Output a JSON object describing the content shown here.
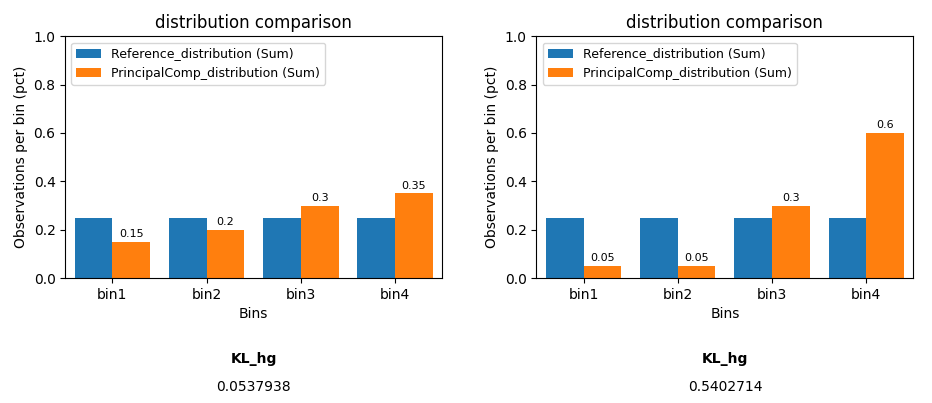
{
  "chart_data": [
    {
      "type": "bar",
      "title": "distribution comparison",
      "x_label": "Bins",
      "y_label": "Observations per bin (pct)",
      "categories": [
        "bin1",
        "bin2",
        "bin3",
        "bin4"
      ],
      "series": [
        {
          "name": "Reference_distribution (Sum)",
          "values": [
            0.25,
            0.25,
            0.25,
            0.25
          ]
        },
        {
          "name": "PrincipalComp_distribution (Sum)",
          "values": [
            0.15,
            0.2,
            0.3,
            0.35
          ],
          "data_labels": true
        }
      ],
      "ylim": [
        0,
        1.0
      ],
      "yticks": [
        0.0,
        0.2,
        0.4,
        0.6,
        0.8,
        1.0
      ],
      "legend": "upper left",
      "annotations": [
        "KL_hg",
        "0.0537938"
      ]
    },
    {
      "type": "bar",
      "title": "distribution comparison",
      "x_label": "Bins",
      "y_label": "Observations per bin (pct)",
      "categories": [
        "bin1",
        "bin2",
        "bin3",
        "bin4"
      ],
      "series": [
        {
          "name": "Reference_distribution (Sum)",
          "values": [
            0.25,
            0.25,
            0.25,
            0.25
          ]
        },
        {
          "name": "PrincipalComp_distribution (Sum)",
          "values": [
            0.05,
            0.05,
            0.3,
            0.6
          ],
          "data_labels": true
        }
      ],
      "ylim": [
        0,
        1.0
      ],
      "yticks": [
        0.0,
        0.2,
        0.4,
        0.6,
        0.8,
        1.0
      ],
      "legend": "upper left",
      "annotations": [
        "KL_hg",
        "0.5402714"
      ]
    }
  ]
}
